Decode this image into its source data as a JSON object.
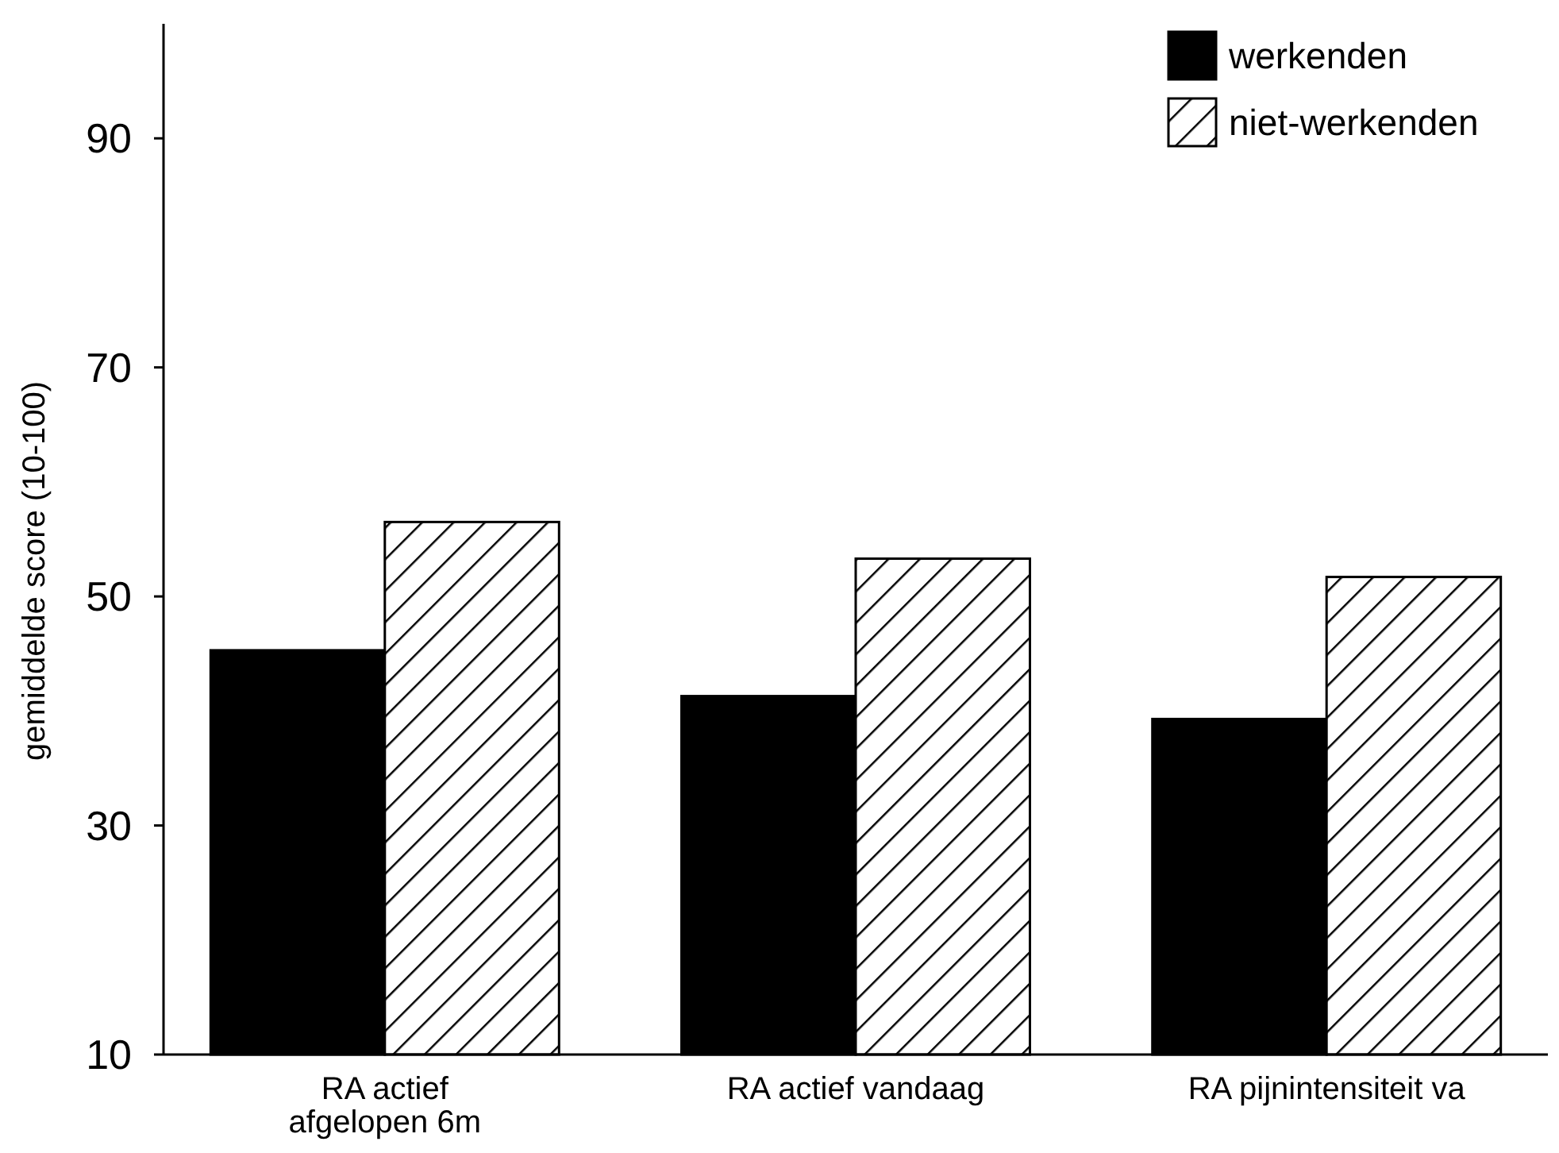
{
  "chart_data": {
    "type": "bar",
    "ylabel": "gemiddelde score (10-100)",
    "categories": [
      "RA actief afgelopen 6m",
      "RA actief vandaag",
      "RA pijnintensiteit va"
    ],
    "series": [
      {
        "name": "werkenden",
        "color": "#000000",
        "values": [
          45.3,
          41.3,
          39.3
        ]
      },
      {
        "name": "niet-werkenden",
        "color": "#000000",
        "values": [
          56.5,
          53.3,
          51.7
        ]
      }
    ],
    "ylim": [
      10,
      100
    ],
    "yticks": [
      10,
      30,
      50,
      70,
      90
    ],
    "legend": "top right",
    "grid": false
  }
}
